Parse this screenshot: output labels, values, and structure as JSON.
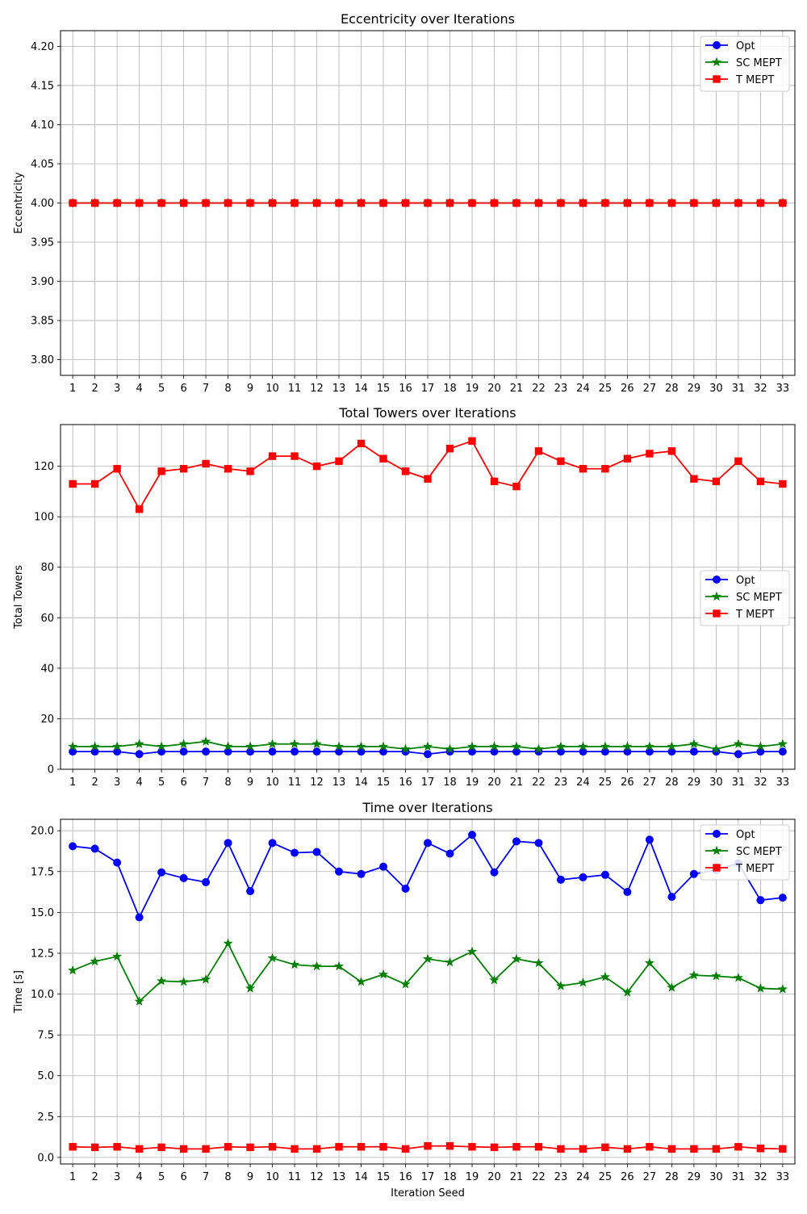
{
  "chart_data": [
    {
      "type": "line",
      "title": "Eccentricity over Iterations",
      "xlabel": "",
      "ylabel": "Eccentricity",
      "x": [
        1,
        2,
        3,
        4,
        5,
        6,
        7,
        8,
        9,
        10,
        11,
        12,
        13,
        14,
        15,
        16,
        17,
        18,
        19,
        20,
        21,
        22,
        23,
        24,
        25,
        26,
        27,
        28,
        29,
        30,
        31,
        32,
        33
      ],
      "ylim": [
        3.78,
        4.22
      ],
      "yticks": [
        3.8,
        3.85,
        3.9,
        3.95,
        4.0,
        4.05,
        4.1,
        4.15,
        4.2
      ],
      "ytick_labels": [
        "3.80",
        "3.85",
        "3.90",
        "3.95",
        "4.00",
        "4.05",
        "4.10",
        "4.15",
        "4.20"
      ],
      "grid": true,
      "legend_position": "top-right",
      "series": [
        {
          "name": "Opt",
          "color": "#0000ff",
          "marker": "circle",
          "values": [
            4,
            4,
            4,
            4,
            4,
            4,
            4,
            4,
            4,
            4,
            4,
            4,
            4,
            4,
            4,
            4,
            4,
            4,
            4,
            4,
            4,
            4,
            4,
            4,
            4,
            4,
            4,
            4,
            4,
            4,
            4,
            4,
            4
          ]
        },
        {
          "name": "SC MEPT",
          "color": "#008000",
          "marker": "star",
          "values": [
            4,
            4,
            4,
            4,
            4,
            4,
            4,
            4,
            4,
            4,
            4,
            4,
            4,
            4,
            4,
            4,
            4,
            4,
            4,
            4,
            4,
            4,
            4,
            4,
            4,
            4,
            4,
            4,
            4,
            4,
            4,
            4,
            4
          ]
        },
        {
          "name": "T MEPT",
          "color": "#ff0000",
          "marker": "square",
          "values": [
            4,
            4,
            4,
            4,
            4,
            4,
            4,
            4,
            4,
            4,
            4,
            4,
            4,
            4,
            4,
            4,
            4,
            4,
            4,
            4,
            4,
            4,
            4,
            4,
            4,
            4,
            4,
            4,
            4,
            4,
            4,
            4,
            4
          ]
        }
      ]
    },
    {
      "type": "line",
      "title": "Total Towers over Iterations",
      "xlabel": "",
      "ylabel": "Total Towers",
      "x": [
        1,
        2,
        3,
        4,
        5,
        6,
        7,
        8,
        9,
        10,
        11,
        12,
        13,
        14,
        15,
        16,
        17,
        18,
        19,
        20,
        21,
        22,
        23,
        24,
        25,
        26,
        27,
        28,
        29,
        30,
        31,
        32,
        33
      ],
      "ylim": [
        0,
        136.5
      ],
      "yticks": [
        0,
        20,
        40,
        60,
        80,
        100,
        120
      ],
      "ytick_labels": [
        "0",
        "20",
        "40",
        "60",
        "80",
        "100",
        "120"
      ],
      "grid": true,
      "legend_position": "center-right",
      "series": [
        {
          "name": "Opt",
          "color": "#0000ff",
          "marker": "circle",
          "values": [
            7,
            7,
            7,
            6,
            7,
            7,
            7,
            7,
            7,
            7,
            7,
            7,
            7,
            7,
            7,
            7,
            6,
            7,
            7,
            7,
            7,
            7,
            7,
            7,
            7,
            7,
            7,
            7,
            7,
            7,
            6,
            7,
            7
          ]
        },
        {
          "name": "SC MEPT",
          "color": "#008000",
          "marker": "star",
          "values": [
            9,
            9,
            9,
            10,
            9,
            10,
            11,
            9,
            9,
            10,
            10,
            10,
            9,
            9,
            9,
            8,
            9,
            8,
            9,
            9,
            9,
            8,
            9,
            9,
            9,
            9,
            9,
            9,
            10,
            8,
            10,
            9,
            10
          ]
        },
        {
          "name": "T MEPT",
          "color": "#ff0000",
          "marker": "square",
          "values": [
            113,
            113,
            119,
            103,
            118,
            119,
            121,
            119,
            118,
            124,
            124,
            120,
            122,
            129,
            123,
            118,
            115,
            127,
            130,
            114,
            112,
            126,
            122,
            119,
            119,
            123,
            125,
            126,
            115,
            114,
            122,
            114,
            113
          ]
        }
      ]
    },
    {
      "type": "line",
      "title": "Time over Iterations",
      "xlabel": "Iteration Seed",
      "ylabel": "Time [s]",
      "x": [
        1,
        2,
        3,
        4,
        5,
        6,
        7,
        8,
        9,
        10,
        11,
        12,
        13,
        14,
        15,
        16,
        17,
        18,
        19,
        20,
        21,
        22,
        23,
        24,
        25,
        26,
        27,
        28,
        29,
        30,
        31,
        32,
        33
      ],
      "ylim": [
        -0.4,
        20.7
      ],
      "yticks": [
        0.0,
        2.5,
        5.0,
        7.5,
        10.0,
        12.5,
        15.0,
        17.5,
        20.0
      ],
      "ytick_labels": [
        "0.0",
        "2.5",
        "5.0",
        "7.5",
        "10.0",
        "12.5",
        "15.0",
        "17.5",
        "20.0"
      ],
      "grid": true,
      "legend_position": "top-right",
      "series": [
        {
          "name": "Opt",
          "color": "#0000ff",
          "marker": "circle",
          "values": [
            19.05,
            18.9,
            18.05,
            14.7,
            17.45,
            17.1,
            16.85,
            19.25,
            16.3,
            19.25,
            18.65,
            18.7,
            17.5,
            17.35,
            17.8,
            16.45,
            19.25,
            18.6,
            19.75,
            17.45,
            19.35,
            19.25,
            17.0,
            17.15,
            17.3,
            16.25,
            19.45,
            15.95,
            17.35,
            17.6,
            18.0,
            15.75,
            15.9
          ]
        },
        {
          "name": "SC MEPT",
          "color": "#008000",
          "marker": "star",
          "values": [
            11.45,
            12.0,
            12.3,
            9.55,
            10.8,
            10.75,
            10.9,
            13.1,
            10.35,
            12.2,
            11.8,
            11.7,
            11.7,
            10.75,
            11.2,
            10.6,
            12.15,
            11.95,
            12.6,
            10.85,
            12.15,
            11.9,
            10.5,
            10.7,
            11.05,
            10.1,
            11.9,
            10.4,
            11.15,
            11.1,
            11.0,
            10.35,
            10.3
          ]
        },
        {
          "name": "T MEPT",
          "color": "#ff0000",
          "marker": "square",
          "values": [
            0.65,
            0.62,
            0.65,
            0.52,
            0.62,
            0.52,
            0.52,
            0.65,
            0.62,
            0.65,
            0.52,
            0.52,
            0.65,
            0.65,
            0.65,
            0.52,
            0.7,
            0.7,
            0.65,
            0.62,
            0.65,
            0.65,
            0.52,
            0.52,
            0.62,
            0.52,
            0.65,
            0.52,
            0.52,
            0.52,
            0.65,
            0.55,
            0.52
          ]
        }
      ]
    }
  ]
}
